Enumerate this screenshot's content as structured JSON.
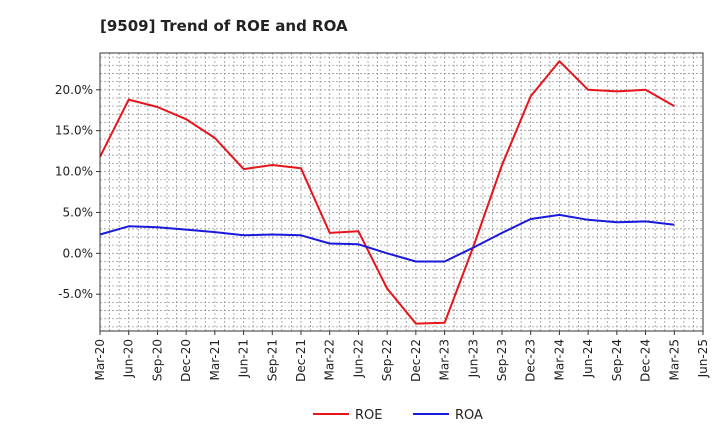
{
  "chart_data": {
    "type": "line",
    "title": "[9509]  Trend of ROE and ROA",
    "xlabel": "",
    "ylabel": "",
    "x": [
      "Mar-20",
      "Jun-20",
      "Sep-20",
      "Dec-20",
      "Mar-21",
      "Jun-21",
      "Sep-21",
      "Dec-21",
      "Mar-22",
      "Jun-22",
      "Sep-22",
      "Dec-22",
      "Mar-23",
      "Jun-23",
      "Sep-23",
      "Dec-23",
      "Mar-24",
      "Jun-24",
      "Sep-24",
      "Dec-24",
      "Mar-25",
      "Jun-25"
    ],
    "ylim": [
      -9.5,
      24.5
    ],
    "yticks": [
      -5,
      0,
      5,
      10,
      15,
      20
    ],
    "ytick_labels": [
      "-5.0%",
      "0.0%",
      "5.0%",
      "10.0%",
      "15.0%",
      "20.0%"
    ],
    "grid": true,
    "legend_position": "bottom",
    "series": [
      {
        "name": "ROE",
        "color": "#e8141c",
        "values": [
          11.8,
          18.8,
          17.9,
          16.4,
          14.1,
          10.3,
          10.8,
          10.4,
          2.5,
          2.7,
          -4.3,
          -8.6,
          -8.5,
          0.8,
          10.8,
          19.2,
          23.5,
          20.0,
          19.8,
          20.0,
          18.0,
          null
        ]
      },
      {
        "name": "ROA",
        "color": "#1a1adc",
        "values": [
          2.3,
          3.3,
          3.2,
          2.9,
          2.6,
          2.2,
          2.3,
          2.2,
          1.2,
          1.1,
          0.0,
          -1.0,
          -1.0,
          0.7,
          2.5,
          4.2,
          4.7,
          4.1,
          3.8,
          3.9,
          3.5,
          null
        ]
      }
    ]
  }
}
